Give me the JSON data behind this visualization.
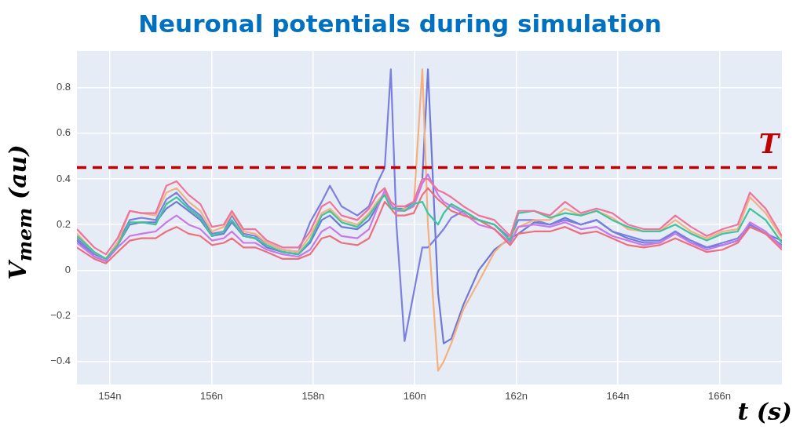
{
  "chart_data": {
    "type": "line",
    "title": "Neuronal potentials during simulation",
    "xlabel": "t (s)",
    "ylabel": "V$_{mem}$ (au)",
    "x": [
      153.35,
      153.69,
      153.92,
      154.15,
      154.39,
      154.62,
      154.9,
      155.11,
      155.31,
      155.55,
      155.78,
      156.01,
      156.24,
      156.4,
      156.63,
      156.86,
      157.09,
      157.4,
      157.71,
      157.94,
      158.17,
      158.33,
      158.56,
      158.87,
      159.1,
      159.26,
      159.41,
      159.53,
      159.64,
      159.8,
      159.98,
      160.15,
      160.26,
      160.46,
      160.57,
      160.72,
      160.96,
      161.26,
      161.57,
      161.88,
      162.04,
      162.35,
      162.66,
      162.96,
      163.27,
      163.58,
      163.89,
      164.2,
      164.51,
      164.82,
      165.13,
      165.44,
      165.75,
      166.06,
      166.36,
      166.6,
      166.91,
      167.23
    ],
    "series": [
      {
        "color": "#f0739a",
        "values": [
          0.18,
          0.1,
          0.07,
          0.14,
          0.26,
          0.25,
          0.25,
          0.37,
          0.39,
          0.33,
          0.29,
          0.19,
          0.2,
          0.26,
          0.18,
          0.18,
          0.13,
          0.1,
          0.1,
          0.17,
          0.28,
          0.3,
          0.24,
          0.22,
          0.27,
          0.33,
          0.36,
          0.3,
          0.28,
          0.28,
          0.3,
          0.4,
          0.4,
          0.35,
          0.34,
          0.32,
          0.28,
          0.24,
          0.22,
          0.15,
          0.26,
          0.26,
          0.24,
          0.3,
          0.25,
          0.27,
          0.25,
          0.2,
          0.18,
          0.18,
          0.24,
          0.19,
          0.15,
          0.18,
          0.2,
          0.34,
          0.27,
          0.15
        ]
      },
      {
        "color": "#3cc49a",
        "values": [
          0.15,
          0.08,
          0.05,
          0.11,
          0.21,
          0.21,
          0.2,
          0.29,
          0.32,
          0.27,
          0.23,
          0.15,
          0.17,
          0.22,
          0.15,
          0.14,
          0.11,
          0.08,
          0.07,
          0.13,
          0.24,
          0.26,
          0.21,
          0.19,
          0.24,
          0.29,
          0.33,
          0.27,
          0.27,
          0.26,
          0.29,
          0.3,
          0.25,
          0.2,
          0.25,
          0.29,
          0.26,
          0.22,
          0.2,
          0.13,
          0.25,
          0.26,
          0.23,
          0.25,
          0.24,
          0.26,
          0.22,
          0.19,
          0.17,
          0.17,
          0.2,
          0.16,
          0.13,
          0.16,
          0.17,
          0.27,
          0.22,
          0.12
        ]
      },
      {
        "color": "#ee6f7c",
        "values": [
          0.1,
          0.05,
          0.03,
          0.08,
          0.13,
          0.14,
          0.14,
          0.17,
          0.19,
          0.16,
          0.15,
          0.11,
          0.12,
          0.14,
          0.1,
          0.1,
          0.08,
          0.05,
          0.05,
          0.07,
          0.14,
          0.15,
          0.12,
          0.11,
          0.14,
          0.22,
          0.3,
          0.27,
          0.24,
          0.24,
          0.25,
          0.33,
          0.36,
          0.31,
          0.29,
          0.26,
          0.24,
          0.22,
          0.18,
          0.11,
          0.16,
          0.17,
          0.17,
          0.19,
          0.16,
          0.17,
          0.14,
          0.11,
          0.1,
          0.11,
          0.14,
          0.11,
          0.08,
          0.09,
          0.12,
          0.19,
          0.16,
          0.09
        ]
      },
      {
        "color": "#c878e8",
        "values": [
          0.12,
          0.06,
          0.04,
          0.1,
          0.15,
          0.16,
          0.17,
          0.21,
          0.24,
          0.2,
          0.18,
          0.13,
          0.14,
          0.17,
          0.12,
          0.12,
          0.09,
          0.07,
          0.06,
          0.09,
          0.17,
          0.19,
          0.15,
          0.14,
          0.18,
          0.27,
          0.35,
          0.29,
          0.26,
          0.26,
          0.28,
          0.38,
          0.42,
          0.33,
          0.3,
          0.28,
          0.25,
          0.2,
          0.18,
          0.12,
          0.19,
          0.2,
          0.19,
          0.21,
          0.18,
          0.19,
          0.15,
          0.13,
          0.11,
          0.12,
          0.16,
          0.12,
          0.09,
          0.11,
          0.13,
          0.21,
          0.17,
          0.1
        ]
      },
      {
        "color": "#f5b080",
        "values": [
          0.16,
          0.08,
          0.05,
          0.12,
          0.26,
          0.25,
          0.24,
          0.34,
          0.36,
          0.3,
          0.26,
          0.17,
          0.19,
          0.25,
          0.17,
          0.16,
          0.12,
          0.09,
          0.08,
          0.15,
          0.25,
          0.27,
          0.22,
          0.2,
          0.25,
          0.3,
          0.34,
          0.28,
          0.26,
          0.27,
          0.28,
          0.88,
          0.2,
          -0.44,
          -0.4,
          -0.32,
          -0.17,
          -0.05,
          0.08,
          0.15,
          0.19,
          0.22,
          0.22,
          0.27,
          0.24,
          0.26,
          0.23,
          0.18,
          0.17,
          0.17,
          0.22,
          0.17,
          0.14,
          0.17,
          0.18,
          0.32,
          0.25,
          0.14
        ]
      },
      {
        "color": "#7b7fe0",
        "values": [
          0.14,
          0.07,
          0.05,
          0.12,
          0.22,
          0.23,
          0.22,
          0.31,
          0.34,
          0.28,
          0.24,
          0.16,
          0.17,
          0.24,
          0.16,
          0.15,
          0.12,
          0.09,
          0.08,
          0.21,
          0.3,
          0.37,
          0.28,
          0.24,
          0.28,
          0.38,
          0.45,
          0.88,
          0.2,
          -0.31,
          -0.1,
          0.1,
          0.1,
          0.15,
          0.18,
          0.23,
          0.26,
          0.22,
          0.2,
          0.14,
          0.22,
          0.22,
          0.2,
          0.22,
          0.2,
          0.22,
          0.17,
          0.15,
          0.13,
          0.13,
          0.17,
          0.13,
          0.1,
          0.12,
          0.14,
          0.2,
          0.16,
          0.11
        ]
      },
      {
        "color": "#6f78d8",
        "values": [
          0.13,
          0.06,
          0.04,
          0.11,
          0.2,
          0.21,
          0.21,
          0.27,
          0.3,
          0.26,
          0.22,
          0.15,
          0.16,
          0.21,
          0.15,
          0.14,
          0.1,
          0.08,
          0.07,
          0.12,
          0.22,
          0.24,
          0.19,
          0.18,
          0.22,
          0.28,
          0.34,
          0.28,
          0.27,
          0.27,
          0.3,
          0.4,
          0.88,
          -0.1,
          -0.32,
          -0.3,
          -0.15,
          0.0,
          0.09,
          0.14,
          0.16,
          0.21,
          0.2,
          0.23,
          0.2,
          0.22,
          0.17,
          0.14,
          0.12,
          0.12,
          0.17,
          0.12,
          0.1,
          0.11,
          0.13,
          0.2,
          0.16,
          0.13
        ]
      }
    ],
    "xlim": [
      153.35,
      167.23
    ],
    "xticks": [
      {
        "value": 154,
        "label": "154n"
      },
      {
        "value": 156,
        "label": "156n"
      },
      {
        "value": 158,
        "label": "158n"
      },
      {
        "value": 160,
        "label": "160n"
      },
      {
        "value": 162,
        "label": "162n"
      },
      {
        "value": 164,
        "label": "164n"
      },
      {
        "value": 166,
        "label": "166n"
      }
    ],
    "ylim": [
      -0.5,
      0.96
    ],
    "yticks": [
      {
        "value": -0.4,
        "label": "−0.4"
      },
      {
        "value": -0.2,
        "label": "−0.2"
      },
      0,
      0.2,
      0.4,
      0.6,
      0.8
    ],
    "ref_lines": [
      {
        "axis": "y",
        "value": 0.45,
        "label": "T",
        "color": "#c00000",
        "line_style": "dashed"
      }
    ],
    "grid": true,
    "legend": false,
    "marker": "none",
    "line_style": "solid"
  }
}
